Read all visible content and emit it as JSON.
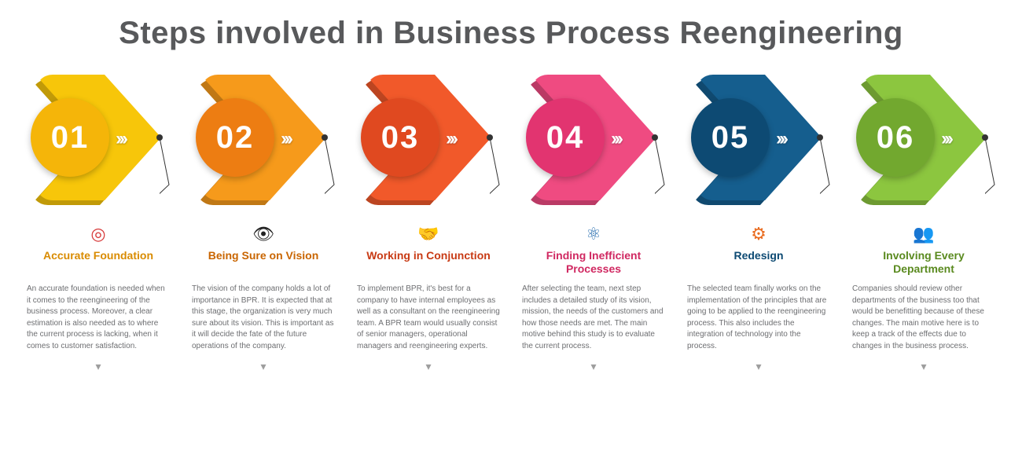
{
  "title": "Steps involved in Business Process Reengineering",
  "title_color": "#58595b",
  "title_fontsize": 40,
  "background_color": "#ffffff",
  "step_type": "infographic",
  "steps": [
    {
      "num": "01",
      "chevron_color": "#f7c60a",
      "circle_color": "#f5b509",
      "title_color": "#d98b00",
      "icon_name": "target-icon",
      "icon_glyph": "◎",
      "icon_color": "#d73a3a",
      "title": "Accurate Foundation",
      "desc": "An accurate foundation is needed when it comes to the reengineering of the business process. Moreover, a clear estimation is also needed as to where the current process is lacking, when it comes to customer satisfaction."
    },
    {
      "num": "02",
      "chevron_color": "#f69a1b",
      "circle_color": "#ed7d12",
      "title_color": "#c96500",
      "icon_name": "eye-icon",
      "icon_glyph": "👁",
      "icon_color": "#222222",
      "title": "Being Sure on Vision",
      "desc": "The vision of the company holds a lot of importance in BPR. It is expected that at this stage, the organization is very much sure about its vision. This is important as it will decide the fate of the future operations of the company."
    },
    {
      "num": "03",
      "chevron_color": "#f1592a",
      "circle_color": "#e04920",
      "title_color": "#c83a14",
      "icon_name": "handshake-icon",
      "icon_glyph": "🤝",
      "icon_color": "#222222",
      "title": "Working in Conjunction",
      "desc": "To implement BPR, it's best for a company to have internal employees as well as a consultant on the reengineering team. A BPR team would usually consist of senior managers, operational managers and reengineering experts."
    },
    {
      "num": "04",
      "chevron_color": "#ef4b81",
      "circle_color": "#e23470",
      "title_color": "#d02861",
      "icon_name": "network-icon",
      "icon_glyph": "⚛",
      "icon_color": "#2a6fb0",
      "title": "Finding Inefficient Processes",
      "desc": "After selecting the team, next step includes a detailed study of its vision, mission, the needs of the customers and how those needs are met. The main motive behind this study is to evaluate the current process."
    },
    {
      "num": "05",
      "chevron_color": "#155e8e",
      "circle_color": "#0d4a73",
      "title_color": "#0d4a73",
      "icon_name": "gears-icon",
      "icon_glyph": "⚙",
      "icon_color": "#e96b1f",
      "title": "Redesign",
      "desc": "The selected team finally works on the implementation of the principles that are going to be applied to the reengineering process. This also includes the integration of technology into the process."
    },
    {
      "num": "06",
      "chevron_color": "#8cc63f",
      "circle_color": "#72a82f",
      "title_color": "#5a8a1f",
      "icon_name": "people-icon",
      "icon_glyph": "👥",
      "icon_color": "#333333",
      "title": "Involving Every Department",
      "desc": "Companies should review other departments of the business too that would be benefitting because of these changes. The main motive here is to keep a track of the effects due to changes in the business process."
    }
  ],
  "desc_color": "#6d6e71",
  "desc_fontsize": 10,
  "step_title_fontsize": 14,
  "mini_chevron_glyph": "›››",
  "connector_color": "#333333",
  "bottom_pointer_glyph": "▾"
}
